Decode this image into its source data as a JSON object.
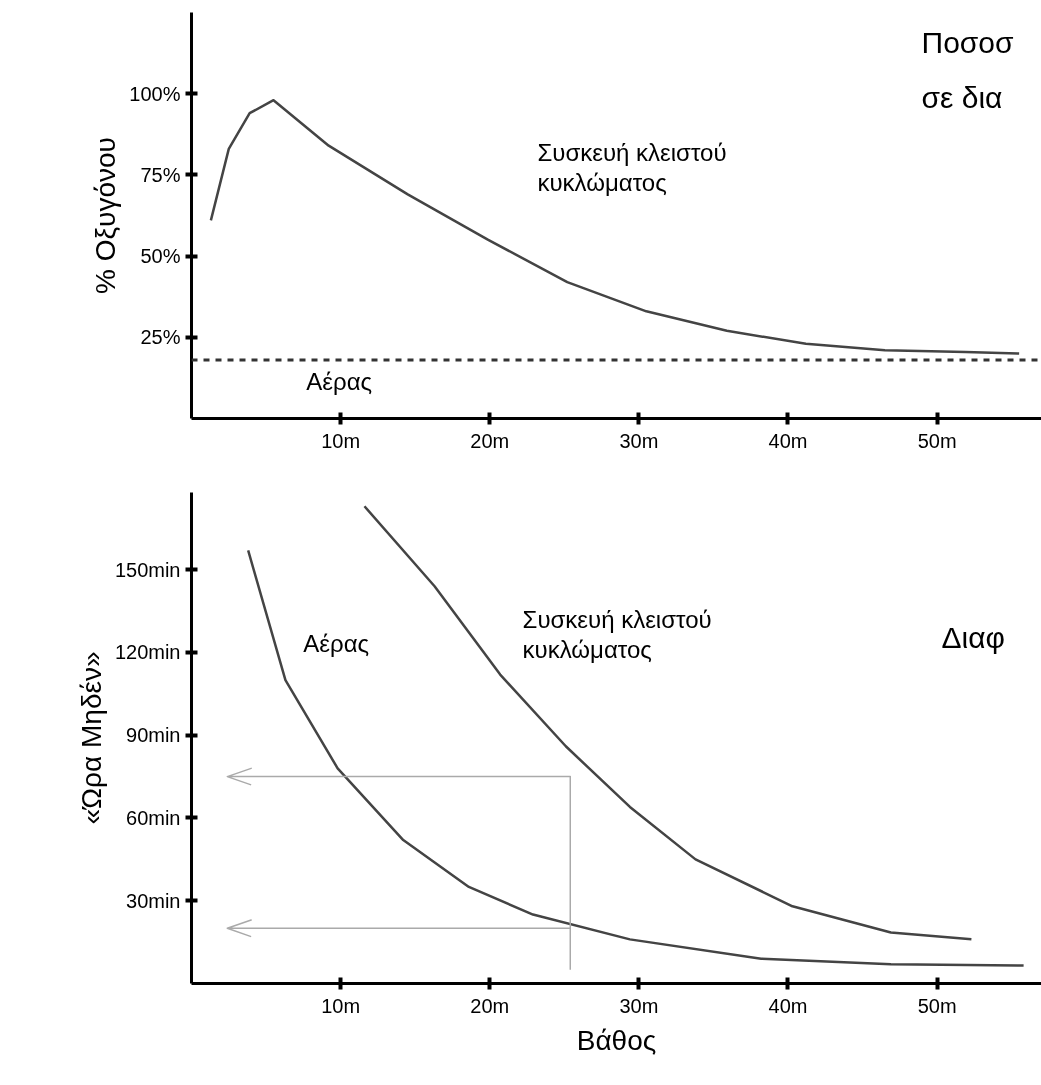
{
  "chart_data": [
    {
      "type": "line",
      "ylabel": "% Οξυγόνου",
      "xlim": [
        0,
        57
      ],
      "ylim": [
        0,
        125
      ],
      "xticks": [
        {
          "value": 10,
          "label": "10m"
        },
        {
          "value": 20,
          "label": "20m"
        },
        {
          "value": 30,
          "label": "30m"
        },
        {
          "value": 40,
          "label": "40m"
        },
        {
          "value": 50,
          "label": "50m"
        }
      ],
      "yticks": [
        {
          "value": 25,
          "label": "25%"
        },
        {
          "value": 50,
          "label": "50%"
        },
        {
          "value": 75,
          "label": "75%"
        },
        {
          "value": 100,
          "label": "100%"
        }
      ],
      "series": [
        {
          "name": "Συσκευή κλειστού\nκυκλώματος",
          "color": "#444444",
          "x": [
            1.3,
            2.5,
            3.9,
            5.5,
            9.2,
            14.5,
            19.9,
            25.2,
            30.5,
            35.9,
            41.2,
            46.5,
            51.9,
            55.5
          ],
          "values": [
            61,
            83,
            94,
            98,
            84,
            69,
            55,
            42,
            33,
            27,
            23,
            21,
            20.5,
            20
          ]
        }
      ],
      "ref_lines": [
        {
          "axis": "y",
          "value": 18,
          "label": "Αέρας",
          "color": "#333333",
          "line_style": "dashed"
        }
      ],
      "annotations": [
        "Ποσοσ",
        "σε δια"
      ],
      "grid": false,
      "marker": "none",
      "line_style": "solid"
    },
    {
      "type": "line",
      "xlabel": "Βάθος",
      "ylabel": "«Ώρα Μηδέν»",
      "xlim": [
        0,
        57
      ],
      "ylim": [
        0,
        178
      ],
      "xticks": [
        {
          "value": 10,
          "label": "10m"
        },
        {
          "value": 20,
          "label": "20m"
        },
        {
          "value": 30,
          "label": "30m"
        },
        {
          "value": 40,
          "label": "40m"
        },
        {
          "value": 50,
          "label": "50m"
        }
      ],
      "yticks": [
        {
          "value": 30,
          "label": "30min"
        },
        {
          "value": 60,
          "label": "60min"
        },
        {
          "value": 90,
          "label": "90min"
        },
        {
          "value": 120,
          "label": "120min"
        },
        {
          "value": 150,
          "label": "150min"
        }
      ],
      "series": [
        {
          "name": "Αέρας",
          "color": "#444444",
          "x": [
            3.8,
            6.3,
            9.8,
            14.2,
            18.6,
            22.9,
            29.4,
            38.2,
            46.9,
            55.8
          ],
          "values": [
            157,
            110,
            78,
            52,
            35,
            25,
            16,
            9,
            7,
            6.5
          ]
        },
        {
          "name": "Συσκευή κλειστού\nκυκλώματος",
          "color": "#444444",
          "x": [
            11.6,
            16.3,
            20.7,
            25.1,
            29.4,
            33.8,
            40.3,
            46.9,
            52.3
          ],
          "values": [
            173,
            144,
            112,
            86,
            64,
            45,
            28,
            18.5,
            16
          ]
        },
        {
          "type": "line",
          "color": "#aaaaaa",
          "x": [
            25.4,
            25.4,
            2.4,
            4.0,
            2.4,
            4.0
          ],
          "values": [
            5,
            75,
            75,
            78,
            75,
            72
          ]
        },
        {
          "type": "line",
          "color": "#aaaaaa",
          "x": [
            25.4,
            2.4,
            4.0,
            2.4,
            4.0
          ],
          "values": [
            20,
            20,
            23,
            20,
            17
          ]
        }
      ],
      "annotations": [
        "Διαφ"
      ],
      "grid": false,
      "marker": "none",
      "line_style": "solid"
    }
  ]
}
